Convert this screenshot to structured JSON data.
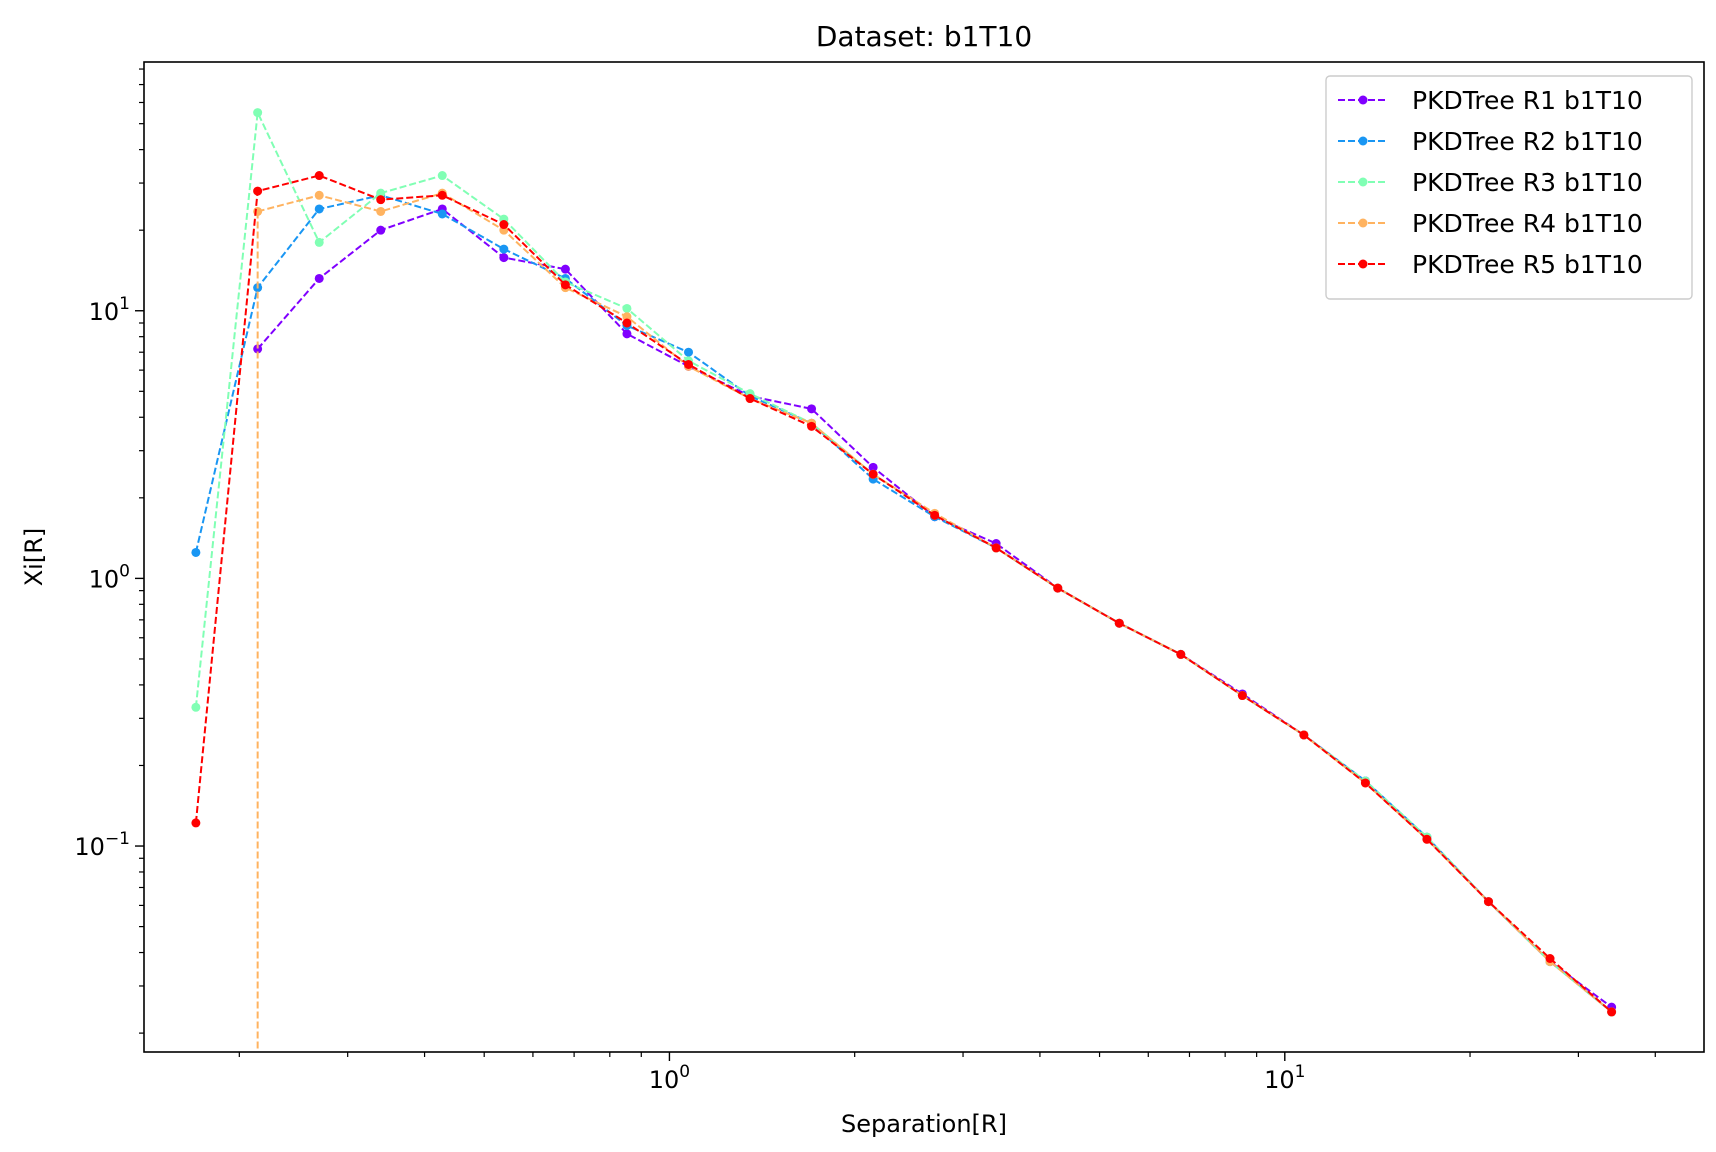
{
  "chart_data": {
    "type": "line",
    "title": "Dataset: b1T10",
    "xlabel": "Separation[R]",
    "ylabel": "Xi[R]",
    "xscale": "log",
    "yscale": "log",
    "xlim": [
      0.14,
      48
    ],
    "ylim": [
      0.017,
      85
    ],
    "x_ticks": [
      {
        "value": 1,
        "label": "10^0"
      },
      {
        "value": 10,
        "label": "10^1"
      }
    ],
    "y_ticks": [
      {
        "value": 0.1,
        "label": "10^-1"
      },
      {
        "value": 1,
        "label": "10^0"
      },
      {
        "value": 10,
        "label": "10^1"
      }
    ],
    "grid": false,
    "legend_position": "top-right",
    "line_style": "dashed",
    "x": [
      0.17,
      0.2142,
      0.2697,
      0.3395,
      0.4274,
      0.5381,
      0.6775,
      0.853,
      1.074,
      1.352,
      1.702,
      2.143,
      2.698,
      3.396,
      4.276,
      5.383,
      6.777,
      8.532,
      10.74,
      13.52,
      17.02,
      21.43,
      26.98,
      33.97
    ],
    "series": [
      {
        "name": "PKDTree R1 b1T10",
        "color": "#8000ff",
        "values": [
          null,
          7.2,
          13.2,
          20,
          24,
          15.8,
          14.3,
          8.2,
          6.2,
          4.8,
          4.3,
          2.6,
          1.7,
          1.35,
          0.92,
          0.68,
          0.52,
          0.37,
          0.26,
          0.175,
          0.107,
          0.062,
          0.037,
          0.025
        ]
      },
      {
        "name": "PKDTree R2 b1T10",
        "color": "#1996f3",
        "values": [
          1.25,
          12.2,
          24,
          27,
          23,
          17,
          13.2,
          8.8,
          7,
          4.8,
          3.8,
          2.35,
          1.7,
          1.3,
          0.92,
          0.68,
          0.52,
          0.365,
          0.26,
          0.175,
          0.108,
          0.062,
          0.037,
          0.024
        ]
      },
      {
        "name": "PKDTree R3 b1T10",
        "color": "#80ffb4",
        "values": [
          0.33,
          55,
          18,
          27.5,
          32,
          22,
          12.8,
          10.2,
          6.5,
          4.9,
          3.8,
          2.45,
          1.72,
          1.3,
          0.92,
          0.68,
          0.52,
          0.365,
          0.26,
          0.175,
          0.108,
          0.062,
          0.037,
          0.024
        ]
      },
      {
        "name": "PKDTree R4 b1T10",
        "color": "#ffb360",
        "values": [
          null,
          23.5,
          27,
          23.5,
          27.5,
          20,
          12.2,
          9.5,
          6.2,
          4.7,
          3.8,
          2.45,
          1.75,
          1.3,
          0.92,
          0.68,
          0.52,
          0.365,
          0.26,
          0.172,
          0.106,
          0.062,
          0.037,
          0.024
        ]
      },
      {
        "name": "PKDTree R5 b1T10",
        "color": "#ff0000",
        "values": [
          0.122,
          28,
          32,
          26,
          27,
          21,
          12.5,
          9,
          6.3,
          4.7,
          3.7,
          2.45,
          1.72,
          1.3,
          0.92,
          0.68,
          0.52,
          0.365,
          0.26,
          0.172,
          0.106,
          0.062,
          0.038,
          0.024
        ]
      }
    ]
  }
}
